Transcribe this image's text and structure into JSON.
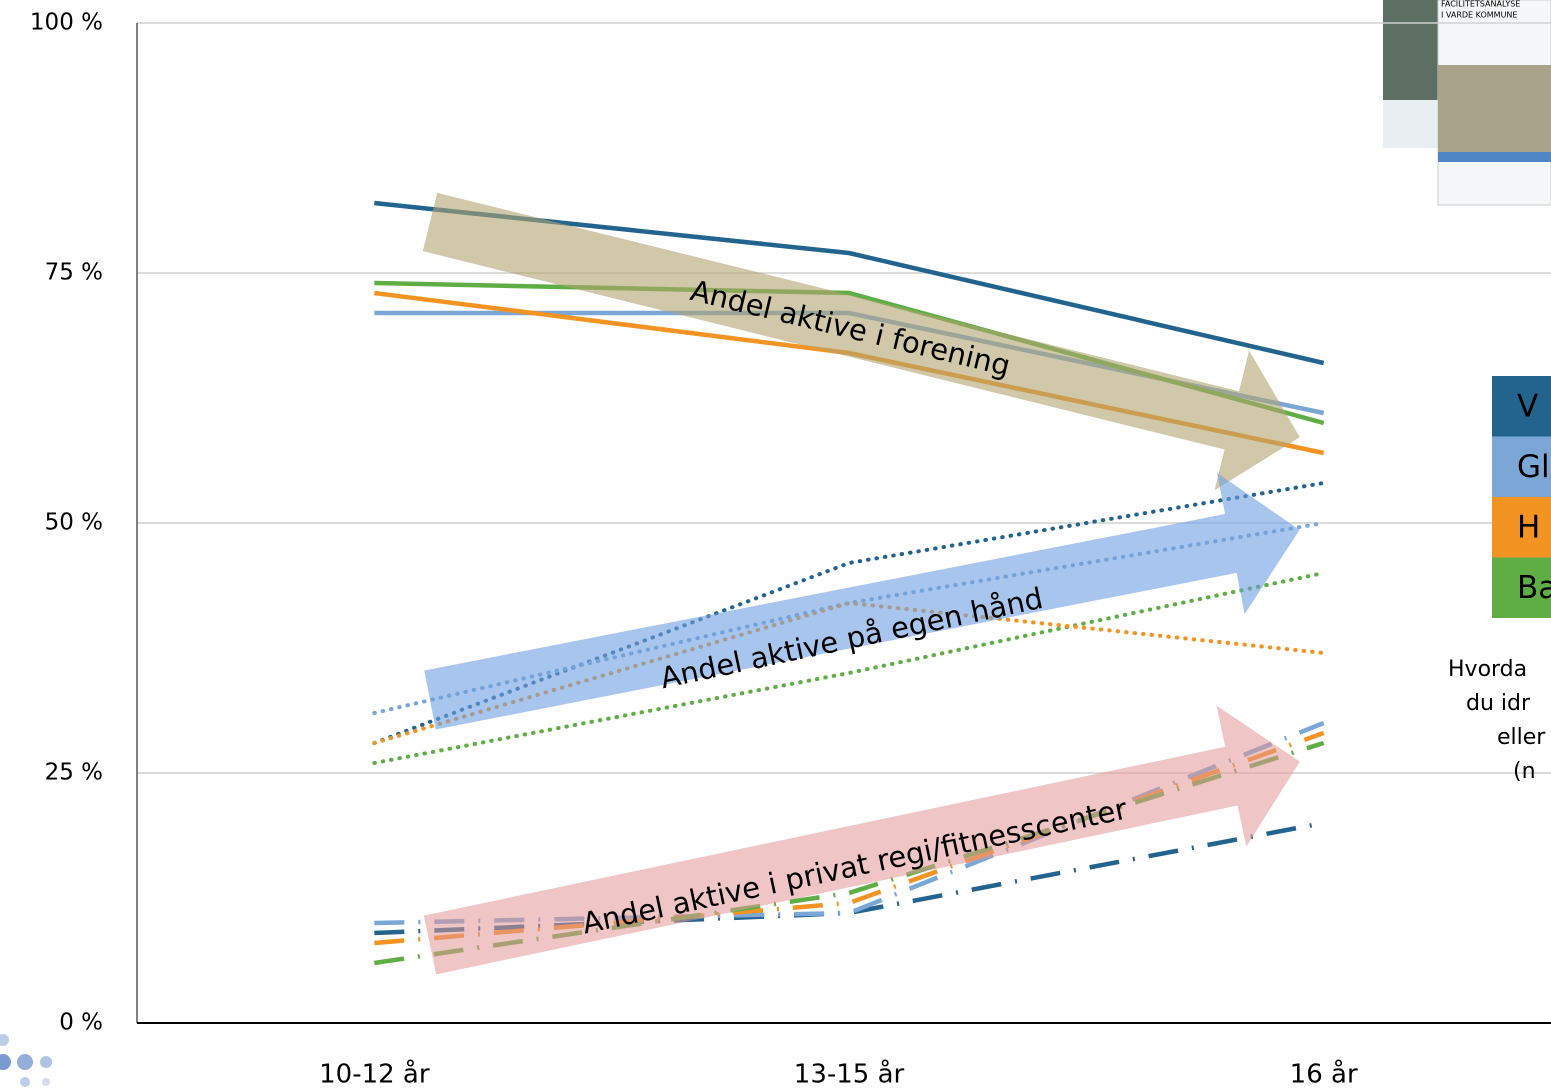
{
  "chart_data": {
    "type": "line",
    "categories": [
      "10-12 år",
      "13-15 år",
      "16 år"
    ],
    "ylim": [
      0,
      100
    ],
    "yticks": [
      {
        "value": 0,
        "label": "0 %"
      },
      {
        "value": 25,
        "label": "25 %"
      },
      {
        "value": 50,
        "label": "50 %"
      },
      {
        "value": 75,
        "label": "75 %"
      },
      {
        "value": 100,
        "label": "100 %"
      }
    ],
    "grid": true,
    "legend": [
      {
        "label": "V",
        "color": "#23648f"
      },
      {
        "label": "Gl",
        "color": "#7ba7d7"
      },
      {
        "label": "H",
        "color": "#f39322"
      },
      {
        "label": "Ba",
        "color": "#5fae45"
      }
    ],
    "series": [
      {
        "group": 0,
        "style": "solid",
        "values": [
          82,
          77,
          66
        ]
      },
      {
        "group": 1,
        "style": "solid",
        "values": [
          71,
          71,
          61
        ]
      },
      {
        "group": 3,
        "style": "solid",
        "values": [
          74,
          73,
          60
        ]
      },
      {
        "group": 2,
        "style": "solid",
        "values": [
          73,
          67,
          57
        ]
      },
      {
        "group": 0,
        "style": "dotted",
        "values": [
          28,
          46,
          54
        ]
      },
      {
        "group": 1,
        "style": "dotted",
        "values": [
          31,
          42,
          50
        ]
      },
      {
        "group": 3,
        "style": "dotted",
        "values": [
          26,
          35,
          45
        ]
      },
      {
        "group": 2,
        "style": "dotted",
        "values": [
          28,
          42,
          37
        ]
      },
      {
        "group": 0,
        "style": "dashdot",
        "values": [
          9,
          11,
          20
        ]
      },
      {
        "group": 1,
        "style": "dashdot",
        "values": [
          10,
          11,
          30
        ]
      },
      {
        "group": 2,
        "style": "dashdot",
        "values": [
          8,
          12,
          29
        ]
      },
      {
        "group": 3,
        "style": "dashdot",
        "values": [
          6,
          13,
          28
        ]
      }
    ],
    "annotations": [
      "Andel aktive i forening",
      "Andel aktive på egen hånd",
      "Andel aktive i privat regi/fitnesscenter"
    ],
    "note": [
      "Hvorda",
      "du idr",
      "eller",
      "(n"
    ]
  },
  "thumbnail": {
    "lines": [
      "FACILITETSANALYSE",
      "I VARDE KOMMUNE"
    ]
  }
}
